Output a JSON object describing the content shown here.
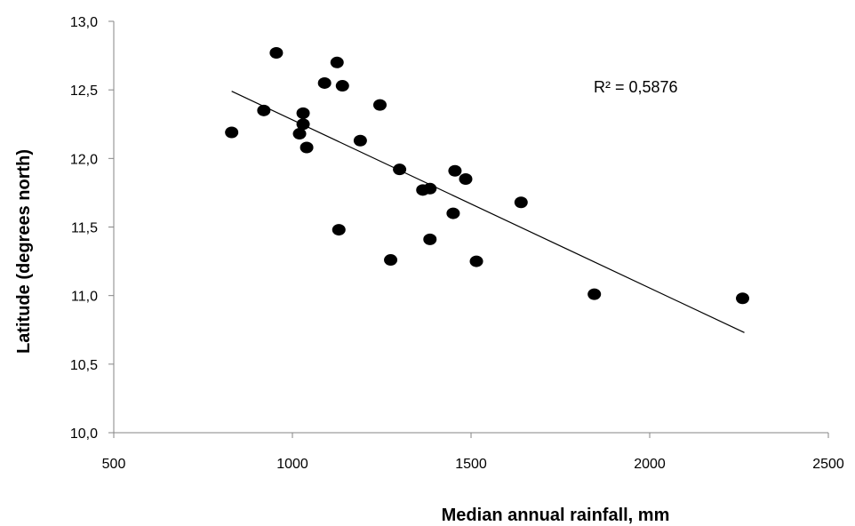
{
  "chart_data": {
    "type": "scatter",
    "xlabel": "Median annual rainfall, mm",
    "ylabel": "Latitude (degrees north)",
    "xlim": [
      500,
      2500
    ],
    "ylim": [
      10.0,
      13.0
    ],
    "x_ticks": [
      500,
      1000,
      1500,
      2000,
      2500
    ],
    "x_tick_labels": [
      "500",
      "1000",
      "1500",
      "2000",
      "2500"
    ],
    "y_ticks": [
      10.0,
      10.5,
      11.0,
      11.5,
      12.0,
      12.5,
      13.0
    ],
    "y_tick_labels": [
      "10,0",
      "10,5",
      "11,0",
      "11,5",
      "12,0",
      "12,5",
      "13,0"
    ],
    "grid": false,
    "series": [
      {
        "x": [
          830,
          920,
          955,
          1020,
          1030,
          1030,
          1040,
          1090,
          1125,
          1130,
          1140,
          1190,
          1245,
          1275,
          1300,
          1365,
          1385,
          1385,
          1450,
          1455,
          1485,
          1515,
          1640,
          1845,
          2260
        ],
        "y": [
          12.19,
          12.35,
          12.77,
          12.18,
          12.33,
          12.25,
          12.08,
          12.55,
          12.7,
          11.48,
          12.53,
          12.13,
          12.39,
          11.26,
          11.92,
          11.77,
          11.78,
          11.41,
          11.6,
          11.91,
          11.85,
          11.25,
          11.68,
          11.01,
          10.98
        ],
        "color": "#000000"
      }
    ],
    "trendline": {
      "type": "linear",
      "x": [
        830,
        2265
      ],
      "y": [
        12.49,
        10.73
      ],
      "color": "#000000"
    },
    "annotations": [
      {
        "text": "R² = 0,5876"
      }
    ]
  }
}
